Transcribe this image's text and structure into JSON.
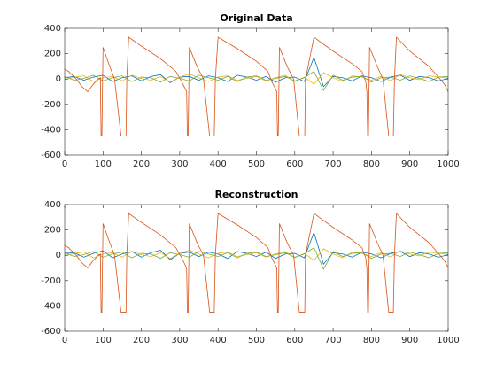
{
  "chart_data": [
    {
      "type": "line",
      "title": "Original Data",
      "xlim": [
        0,
        1000
      ],
      "xticks": [
        0,
        100,
        200,
        300,
        400,
        500,
        600,
        700,
        800,
        900,
        1000
      ],
      "ylim": [
        -600,
        400
      ],
      "yticks": [
        -600,
        -400,
        -200,
        0,
        200,
        400
      ],
      "series": [
        {
          "color": "#0072bd",
          "x": [
            0,
            25,
            50,
            75,
            100,
            125,
            150,
            175,
            200,
            225,
            250,
            275,
            300,
            325,
            350,
            375,
            400,
            425,
            450,
            475,
            500,
            525,
            550,
            575,
            600,
            625,
            650,
            675,
            700,
            725,
            750,
            775,
            800,
            825,
            850,
            875,
            900,
            925,
            950,
            975,
            1000
          ],
          "values": [
            10,
            20,
            -10,
            15,
            30,
            -20,
            10,
            25,
            -15,
            20,
            35,
            -30,
            15,
            20,
            -10,
            25,
            10,
            -20,
            30,
            15,
            -10,
            20,
            -25,
            10,
            15,
            -20,
            170,
            -60,
            20,
            10,
            -15,
            25,
            10,
            -20,
            15,
            30,
            -10,
            20,
            10,
            -15,
            5
          ]
        },
        {
          "color": "#edb120",
          "x": [
            0,
            25,
            50,
            75,
            100,
            125,
            150,
            175,
            200,
            225,
            250,
            275,
            300,
            325,
            350,
            375,
            400,
            425,
            450,
            475,
            500,
            525,
            550,
            575,
            600,
            625,
            650,
            675,
            700,
            725,
            750,
            775,
            800,
            825,
            850,
            875,
            900,
            925,
            950,
            975,
            1000
          ],
          "values": [
            -5,
            15,
            25,
            -20,
            10,
            20,
            -15,
            30,
            5,
            -10,
            20,
            -25,
            15,
            40,
            10,
            -20,
            15,
            25,
            -10,
            5,
            20,
            -15,
            10,
            30,
            -20,
            15,
            -40,
            50,
            10,
            -20,
            25,
            15,
            -10,
            20,
            -15,
            35,
            10,
            -5,
            25,
            15,
            10
          ]
        },
        {
          "color": "#77ac30",
          "x": [
            0,
            25,
            50,
            75,
            100,
            125,
            150,
            175,
            200,
            225,
            250,
            275,
            300,
            325,
            350,
            375,
            400,
            425,
            450,
            475,
            500,
            525,
            550,
            575,
            600,
            625,
            650,
            675,
            700,
            725,
            750,
            775,
            800,
            825,
            850,
            875,
            900,
            925,
            950,
            975,
            1000
          ],
          "values": [
            20,
            -10,
            5,
            30,
            -15,
            10,
            25,
            -20,
            15,
            10,
            -25,
            20,
            5,
            -15,
            30,
            10,
            -10,
            20,
            -20,
            15,
            25,
            -10,
            5,
            20,
            -15,
            10,
            60,
            -90,
            30,
            -10,
            15,
            20,
            -25,
            10,
            15,
            -10,
            25,
            5,
            -20,
            15,
            20
          ]
        },
        {
          "color": "#d95319",
          "x": [
            0,
            10,
            30,
            45,
            60,
            75,
            88,
            93,
            95,
            97,
            100,
            115,
            130,
            147,
            160,
            162,
            167,
            200,
            250,
            290,
            305,
            318,
            320,
            322,
            325,
            345,
            362,
            378,
            390,
            393,
            400,
            450,
            500,
            530,
            540,
            553,
            555,
            557,
            560,
            580,
            597,
            612,
            626,
            628,
            650,
            700,
            750,
            775,
            785,
            788,
            790,
            792,
            795,
            815,
            830,
            845,
            857,
            860,
            865,
            900,
            950,
            990,
            1000
          ],
          "values": [
            80,
            60,
            0,
            -60,
            -100,
            -40,
            0,
            10,
            -450,
            -450,
            250,
            120,
            0,
            -450,
            -450,
            0,
            330,
            260,
            160,
            60,
            -20,
            -100,
            -450,
            -450,
            250,
            100,
            0,
            -450,
            -450,
            0,
            330,
            240,
            140,
            60,
            -20,
            -100,
            -450,
            -450,
            250,
            100,
            0,
            -450,
            -450,
            0,
            330,
            220,
            120,
            60,
            -20,
            -100,
            -450,
            -450,
            250,
            100,
            0,
            -450,
            -450,
            0,
            330,
            220,
            100,
            -40,
            -100
          ]
        }
      ]
    },
    {
      "type": "line",
      "title": "Reconstruction",
      "xlim": [
        0,
        1000
      ],
      "xticks": [
        0,
        100,
        200,
        300,
        400,
        500,
        600,
        700,
        800,
        900,
        1000
      ],
      "ylim": [
        -600,
        400
      ],
      "yticks": [
        -600,
        -400,
        -200,
        0,
        200,
        400
      ],
      "series": [
        {
          "color": "#0072bd",
          "x": [
            0,
            25,
            50,
            75,
            100,
            125,
            150,
            175,
            200,
            225,
            250,
            275,
            300,
            325,
            350,
            375,
            400,
            425,
            450,
            475,
            500,
            525,
            550,
            575,
            600,
            625,
            650,
            675,
            700,
            725,
            750,
            775,
            800,
            825,
            850,
            875,
            900,
            925,
            950,
            975,
            1000
          ],
          "values": [
            15,
            20,
            -15,
            15,
            35,
            -20,
            10,
            30,
            -15,
            20,
            40,
            -35,
            15,
            25,
            -10,
            25,
            10,
            -25,
            30,
            15,
            -10,
            25,
            -25,
            10,
            15,
            -20,
            180,
            -70,
            20,
            10,
            -15,
            25,
            10,
            -20,
            15,
            30,
            -10,
            20,
            10,
            -15,
            5
          ]
        },
        {
          "color": "#edb120",
          "x": [
            0,
            25,
            50,
            75,
            100,
            125,
            150,
            175,
            200,
            225,
            250,
            275,
            300,
            325,
            350,
            375,
            400,
            425,
            450,
            475,
            500,
            525,
            550,
            575,
            600,
            625,
            650,
            675,
            700,
            725,
            750,
            775,
            800,
            825,
            850,
            875,
            900,
            925,
            950,
            975,
            1000
          ],
          "values": [
            -5,
            15,
            25,
            -20,
            10,
            20,
            -15,
            30,
            5,
            -10,
            20,
            -25,
            15,
            40,
            10,
            -20,
            15,
            25,
            -10,
            5,
            20,
            -15,
            10,
            30,
            -20,
            15,
            -40,
            50,
            10,
            -20,
            25,
            15,
            -10,
            20,
            -15,
            35,
            10,
            -5,
            25,
            15,
            10
          ]
        },
        {
          "color": "#77ac30",
          "x": [
            0,
            25,
            50,
            75,
            100,
            125,
            150,
            175,
            200,
            225,
            250,
            275,
            300,
            325,
            350,
            375,
            400,
            425,
            450,
            475,
            500,
            525,
            550,
            575,
            600,
            625,
            650,
            675,
            700,
            725,
            750,
            775,
            800,
            825,
            850,
            875,
            900,
            925,
            950,
            975,
            1000
          ],
          "values": [
            20,
            -10,
            5,
            30,
            -15,
            10,
            25,
            -20,
            15,
            10,
            -25,
            20,
            5,
            -15,
            30,
            10,
            -10,
            20,
            -20,
            15,
            25,
            -10,
            5,
            20,
            -15,
            10,
            60,
            -110,
            30,
            -10,
            15,
            20,
            -25,
            10,
            15,
            -10,
            25,
            5,
            -20,
            15,
            20
          ]
        },
        {
          "color": "#d95319",
          "x": [
            0,
            10,
            30,
            45,
            60,
            75,
            88,
            93,
            95,
            97,
            100,
            115,
            130,
            147,
            160,
            162,
            167,
            200,
            250,
            290,
            305,
            318,
            320,
            322,
            325,
            345,
            362,
            378,
            390,
            393,
            400,
            450,
            500,
            530,
            540,
            553,
            555,
            557,
            560,
            580,
            597,
            612,
            626,
            628,
            650,
            700,
            750,
            775,
            785,
            788,
            790,
            792,
            795,
            815,
            830,
            845,
            857,
            860,
            865,
            900,
            950,
            990,
            1000
          ],
          "values": [
            80,
            60,
            0,
            -60,
            -100,
            -40,
            0,
            10,
            -450,
            -450,
            250,
            120,
            0,
            -450,
            -450,
            0,
            330,
            260,
            160,
            60,
            -20,
            -100,
            -450,
            -450,
            250,
            100,
            0,
            -450,
            -450,
            0,
            330,
            240,
            140,
            60,
            -20,
            -100,
            -450,
            -450,
            250,
            100,
            0,
            -450,
            -450,
            0,
            330,
            220,
            120,
            60,
            -20,
            -100,
            -450,
            -450,
            250,
            100,
            0,
            -450,
            -450,
            0,
            330,
            220,
            100,
            -40,
            -100
          ]
        }
      ]
    }
  ]
}
